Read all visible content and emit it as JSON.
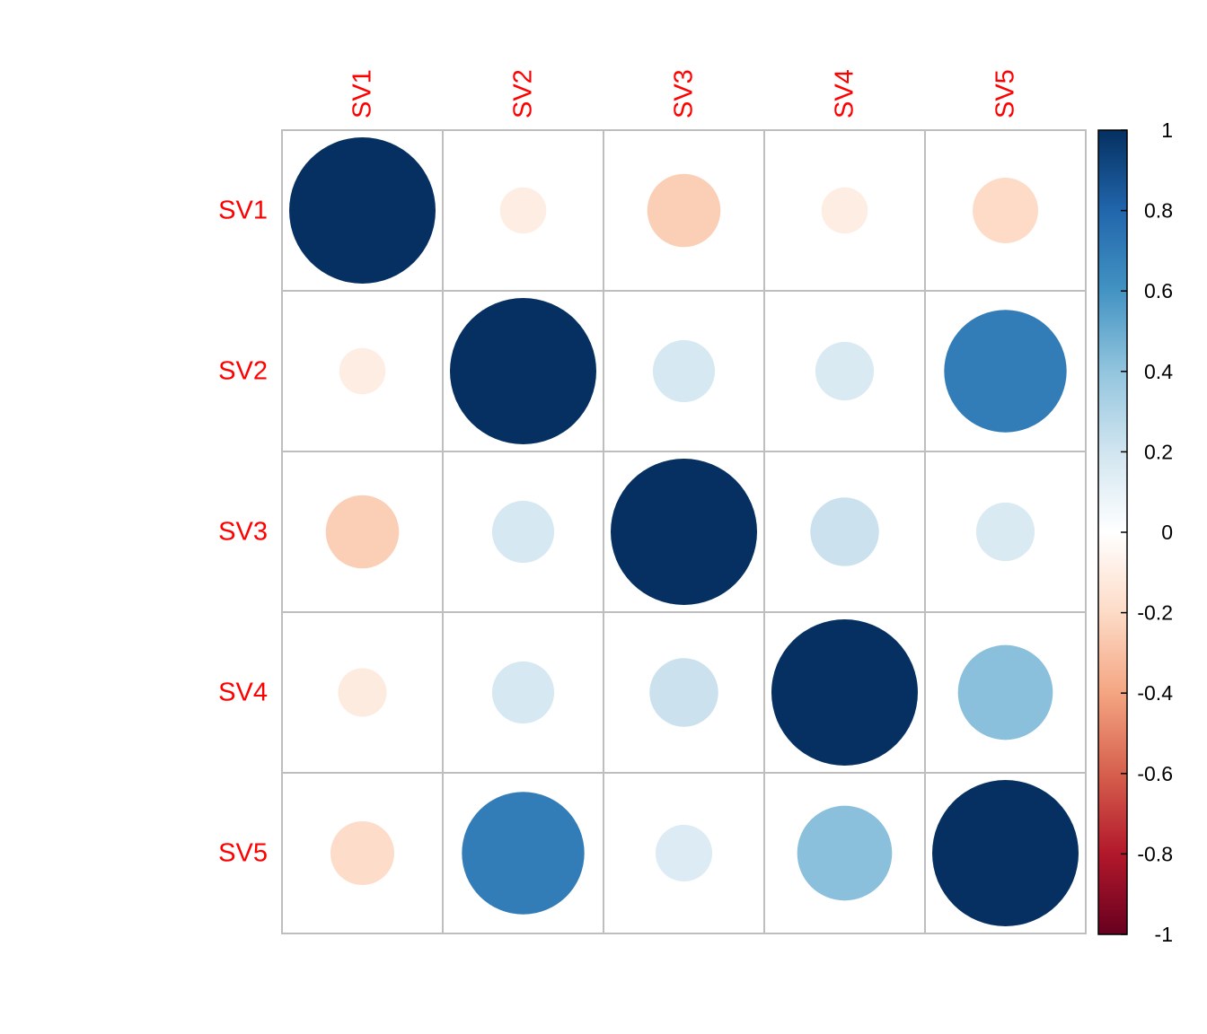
{
  "chart_data": {
    "type": "heatmap",
    "subtype": "correlation-matrix-circles",
    "variables": [
      "SV1",
      "SV2",
      "SV3",
      "SV4",
      "SV5"
    ],
    "matrix": [
      [
        1.0,
        -0.1,
        -0.25,
        -0.1,
        -0.2
      ],
      [
        -0.1,
        1.0,
        0.18,
        0.16,
        0.7
      ],
      [
        -0.25,
        0.18,
        1.0,
        0.22,
        0.16
      ],
      [
        -0.11,
        0.18,
        0.22,
        1.0,
        0.42
      ],
      [
        -0.19,
        0.7,
        0.15,
        0.42,
        1.0
      ]
    ],
    "color_scale": {
      "range": [
        -1,
        1
      ],
      "ticks": [
        "1",
        "0.8",
        "0.6",
        "0.4",
        "0.2",
        "0",
        "-0.2",
        "-0.4",
        "-0.6",
        "-0.8",
        "-1"
      ],
      "stops": [
        {
          "v": -1.0,
          "color": "#67001F"
        },
        {
          "v": -0.8,
          "color": "#B2182B"
        },
        {
          "v": -0.6,
          "color": "#D6604D"
        },
        {
          "v": -0.4,
          "color": "#F4A582"
        },
        {
          "v": -0.2,
          "color": "#FDDBC7"
        },
        {
          "v": 0.0,
          "color": "#FFFFFF"
        },
        {
          "v": 0.2,
          "color": "#D1E5F0"
        },
        {
          "v": 0.4,
          "color": "#92C5DE"
        },
        {
          "v": 0.6,
          "color": "#4393C3"
        },
        {
          "v": 0.8,
          "color": "#2166AC"
        },
        {
          "v": 1.0,
          "color": "#053061"
        }
      ]
    },
    "label_color": "#FF0000",
    "grid_color": "#BEBEBE",
    "legend_placement": "right",
    "title": "",
    "xlabel": "",
    "ylabel": ""
  }
}
